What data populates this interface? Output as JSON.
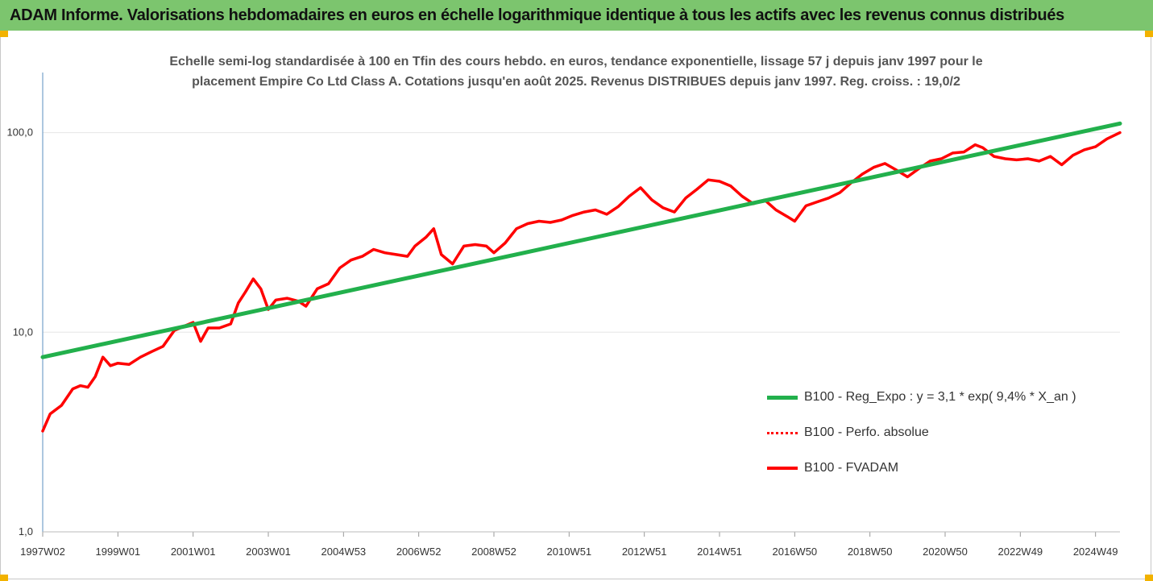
{
  "header": {
    "title": "ADAM Informe. Valorisations hebdomadaires en euros en échelle logarithmique identique à tous les actifs avec les revenus connus distribués"
  },
  "colors": {
    "title_bar": "#7cc56e",
    "trend": "#22b04c",
    "perf": "#ff0000",
    "fvadam": "#ff0000",
    "grid": "#e6e6e6",
    "axis": "#5b8fbf"
  },
  "chart_data": {
    "type": "line",
    "title_lines": [
      "Echelle semi-log standardisée à 100 en Tfin des cours hebdo. en euros, tendance exponentielle, lissage 57 j depuis janv 1997 pour le",
      "placement Empire Co Ltd Class A. Cotations jusqu'en août 2025. Revenus DISTRIBUES depuis janv 1997.  Reg. croiss. : 19,0/2"
    ],
    "y_scale": "log",
    "ylim": [
      1,
      200
    ],
    "y_ticks": [
      "1,0",
      "10,0",
      "100,0"
    ],
    "xlim": [
      1997.0,
      2025.65
    ],
    "x_tick_labels": [
      "1997W02",
      "1999W01",
      "2001W01",
      "2003W01",
      "2004W53",
      "2006W52",
      "2008W52",
      "2010W51",
      "2012W51",
      "2014W51",
      "2016W50",
      "2018W50",
      "2020W50",
      "2022W49",
      "2024W49"
    ],
    "x_tick_years": [
      1997.0,
      1999.0,
      2001.0,
      2003.0,
      2005.0,
      2007.0,
      2009.0,
      2011.0,
      2013.0,
      2015.0,
      2017.0,
      2019.0,
      2021.0,
      2023.0,
      2025.0
    ],
    "legend_position": "right",
    "series": [
      {
        "name": "B100 - Reg_Expo : y = 3,1 * exp( 9,4% *  X_an )",
        "style": "solid-thick",
        "x": [
          1997.0,
          2025.65
        ],
        "values": [
          7.5,
          111
        ]
      },
      {
        "name": "B100 - Perfo. absolue",
        "style": "dotted",
        "x": [],
        "values": []
      },
      {
        "name": "B100 - FVADAM",
        "style": "solid",
        "x": [
          1997.0,
          1997.2,
          1997.5,
          1997.8,
          1998.0,
          1998.2,
          1998.4,
          1998.6,
          1998.8,
          1999.0,
          1999.3,
          1999.6,
          1999.9,
          2000.2,
          2000.5,
          2000.8,
          2001.0,
          2001.2,
          2001.4,
          2001.7,
          2002.0,
          2002.2,
          2002.4,
          2002.6,
          2002.8,
          2003.0,
          2003.2,
          2003.5,
          2003.8,
          2004.0,
          2004.3,
          2004.6,
          2004.9,
          2005.2,
          2005.5,
          2005.8,
          2006.1,
          2006.4,
          2006.7,
          2006.9,
          2007.2,
          2007.4,
          2007.6,
          2007.9,
          2008.2,
          2008.5,
          2008.8,
          2009.0,
          2009.3,
          2009.6,
          2009.9,
          2010.2,
          2010.5,
          2010.8,
          2011.1,
          2011.4,
          2011.7,
          2012.0,
          2012.3,
          2012.6,
          2012.9,
          2013.2,
          2013.5,
          2013.8,
          2014.1,
          2014.4,
          2014.7,
          2015.0,
          2015.3,
          2015.6,
          2015.9,
          2016.2,
          2016.5,
          2016.8,
          2017.0,
          2017.3,
          2017.6,
          2017.9,
          2018.2,
          2018.5,
          2018.8,
          2019.1,
          2019.4,
          2019.7,
          2020.0,
          2020.3,
          2020.6,
          2020.9,
          2021.2,
          2021.5,
          2021.8,
          2022.0,
          2022.3,
          2022.6,
          2022.9,
          2023.2,
          2023.5,
          2023.8,
          2024.1,
          2024.4,
          2024.7,
          2025.0,
          2025.3,
          2025.65
        ],
        "values": [
          3.2,
          3.9,
          4.3,
          5.2,
          5.4,
          5.3,
          6.0,
          7.5,
          6.8,
          7.0,
          6.9,
          7.5,
          8.0,
          8.5,
          10.2,
          10.8,
          11.2,
          9.0,
          10.5,
          10.5,
          11.0,
          14.0,
          16.0,
          18.5,
          16.5,
          13.0,
          14.5,
          14.8,
          14.3,
          13.5,
          16.5,
          17.5,
          21.0,
          23.0,
          24.0,
          26.0,
          25.0,
          24.5,
          24.0,
          27.0,
          30.0,
          33.0,
          24.5,
          22.0,
          27.0,
          27.5,
          27.0,
          25.0,
          28.0,
          33.0,
          35.0,
          36.0,
          35.5,
          36.5,
          38.5,
          40.0,
          41.0,
          39.0,
          42.5,
          48.0,
          53.0,
          46.0,
          42.0,
          40.0,
          47.0,
          52.0,
          58.0,
          57.0,
          54.0,
          48.0,
          44.0,
          46.0,
          41.0,
          38.0,
          36.0,
          43.0,
          45.0,
          47.0,
          50.0,
          56.0,
          62.0,
          67.0,
          70.0,
          65.0,
          60.0,
          66.0,
          72.0,
          74.0,
          79.0,
          80.0,
          87.0,
          84.0,
          76.0,
          74.0,
          73.0,
          74.0,
          72.0,
          76.0,
          69.0,
          77.0,
          82.0,
          85.0,
          93.0,
          100.0
        ]
      }
    ]
  }
}
